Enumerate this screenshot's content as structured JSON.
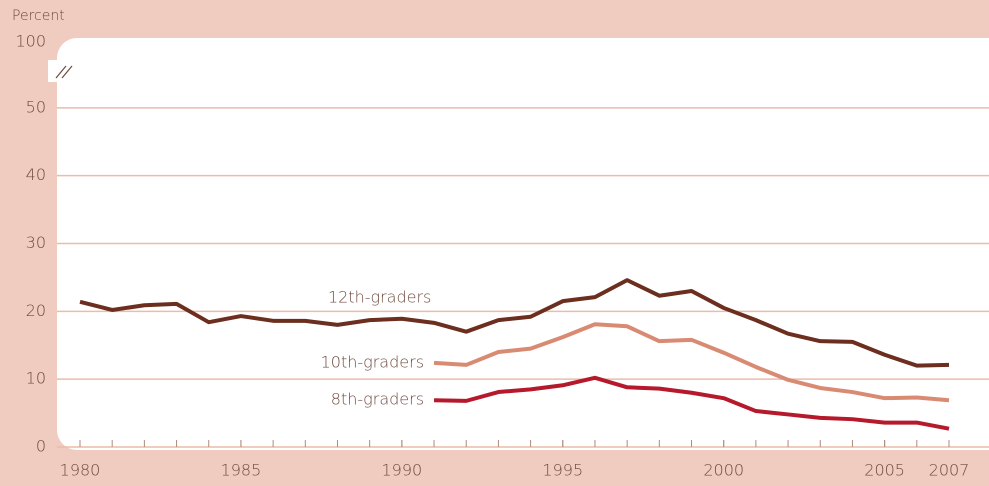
{
  "chart_data": {
    "type": "line",
    "y_label": "Percent",
    "x": [
      1980,
      1981,
      1982,
      1983,
      1984,
      1985,
      1986,
      1987,
      1988,
      1989,
      1990,
      1991,
      1992,
      1993,
      1994,
      1995,
      1996,
      1997,
      1998,
      1999,
      2000,
      2001,
      2002,
      2003,
      2004,
      2005,
      2006,
      2007
    ],
    "series": [
      {
        "name": "12th-graders",
        "color": "#6b2e1f",
        "values": [
          21.4,
          20.2,
          20.9,
          21.1,
          18.4,
          19.3,
          18.6,
          18.6,
          18.0,
          18.7,
          18.9,
          18.3,
          17.0,
          18.7,
          19.2,
          21.5,
          22.1,
          24.6,
          22.3,
          23.0,
          20.5,
          18.7,
          16.7,
          15.6,
          15.5,
          13.6,
          12.0,
          12.1
        ]
      },
      {
        "name": "10th-graders",
        "color": "#d98a73",
        "values": [
          null,
          null,
          null,
          null,
          null,
          null,
          null,
          null,
          null,
          null,
          null,
          12.4,
          12.1,
          14.0,
          14.5,
          16.2,
          18.1,
          17.8,
          15.6,
          15.8,
          13.9,
          11.8,
          9.9,
          8.7,
          8.1,
          7.2,
          7.3,
          6.9
        ]
      },
      {
        "name": "8th-graders",
        "color": "#b5192b",
        "values": [
          null,
          null,
          null,
          null,
          null,
          null,
          null,
          null,
          null,
          null,
          null,
          6.9,
          6.8,
          8.1,
          8.5,
          9.1,
          10.2,
          8.8,
          8.6,
          8.0,
          7.2,
          5.3,
          4.8,
          4.3,
          4.1,
          3.6,
          3.6,
          2.7
        ]
      }
    ],
    "xlim": [
      1980,
      2007
    ],
    "xticks": [
      1980,
      1985,
      1990,
      1995,
      2000,
      2005,
      2007
    ],
    "ylim": [
      0,
      60
    ],
    "yticks": [
      0,
      10,
      20,
      30,
      40,
      50,
      100
    ],
    "y_break": true,
    "grid": true
  }
}
